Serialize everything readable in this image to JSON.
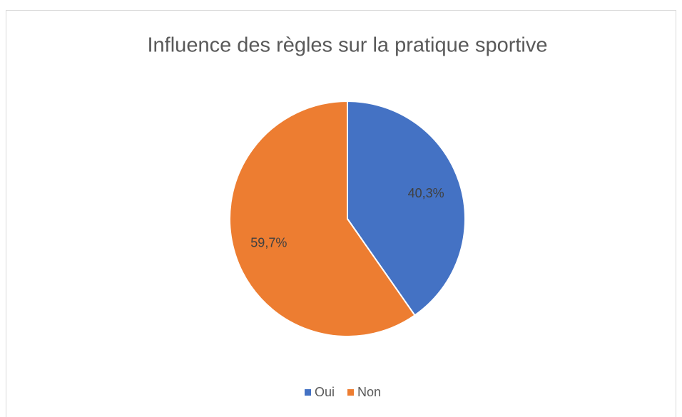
{
  "chart_data": {
    "type": "pie",
    "title": "Influence des règles sur la pratique sportive",
    "categories": [
      "Oui",
      "Non"
    ],
    "values": [
      40.3,
      59.7
    ],
    "value_labels": [
      "40,3%",
      "59,7%"
    ],
    "colors": [
      "#4472c4",
      "#ed7d31"
    ],
    "legend": "bottom"
  }
}
